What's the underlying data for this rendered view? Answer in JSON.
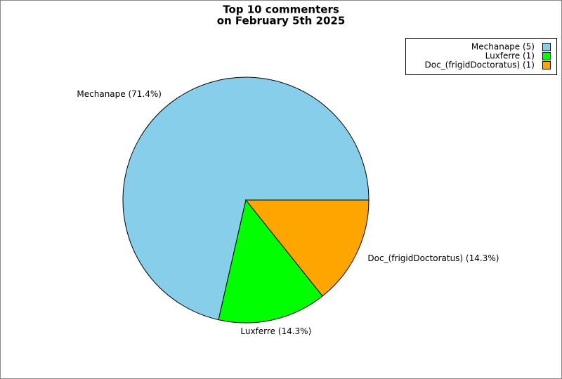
{
  "chart_data": {
    "type": "pie",
    "title": [
      "Top 10 commenters",
      "on February 5th 2025"
    ],
    "values": [
      5,
      1,
      1
    ],
    "value_labels": [
      "Mechanape (71.4%)",
      "Luxferre (14.3%)",
      "Doc_(frigidDoctoratus) (14.3%)"
    ],
    "legend_labels": [
      "Mechanape (5)",
      "Luxferre (1)",
      "Doc_(frigidDoctoratus) (1)"
    ],
    "colors": [
      "#87ceeb",
      "#00ff00",
      "#ffa500"
    ],
    "legend": "upper right"
  }
}
